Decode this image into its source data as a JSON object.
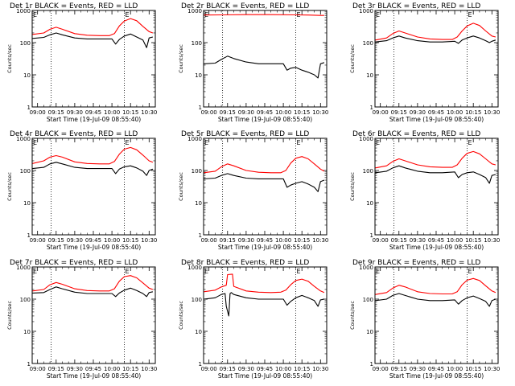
{
  "figure": {
    "x_tick_labels": [
      "09:00",
      "09:15",
      "09:30",
      "09:45",
      "10:00",
      "10:15",
      "10:30"
    ],
    "y_tick_labels": [
      "1",
      "10",
      "100",
      "1000"
    ],
    "xlabel": "Start Time (19-Jul-09 08:55:40)",
    "ylabel": "Counts/sec",
    "event_marker": "E",
    "colors": {
      "events": "#000000",
      "lld": "#ff0000",
      "frame": "#000000",
      "background": "#ffffff"
    }
  },
  "chart_data": [
    {
      "type": "line",
      "title": "Det 1r BLACK = Events, RED = LLD",
      "x_range": [
        "08:55:40",
        "10:35"
      ],
      "ylim": [
        1,
        1000
      ],
      "y_scale": "log",
      "vlines": [
        "09:11",
        "10:10"
      ],
      "series": [
        {
          "name": "Events",
          "color": "#000000",
          "x": [
            "08:56",
            "09:05",
            "09:10",
            "09:15",
            "09:20",
            "09:30",
            "09:40",
            "09:50",
            "10:00",
            "10:03",
            "10:06",
            "10:10",
            "10:15",
            "10:20",
            "10:25",
            "10:28",
            "10:30",
            "10:33"
          ],
          "values": [
            135,
            145,
            175,
            200,
            175,
            140,
            130,
            130,
            130,
            90,
            125,
            160,
            185,
            150,
            120,
            70,
            140,
            150
          ]
        },
        {
          "name": "LLD",
          "color": "#ff0000",
          "x": [
            "08:56",
            "09:05",
            "09:10",
            "09:15",
            "09:20",
            "09:30",
            "09:40",
            "09:50",
            "09:58",
            "10:02",
            "10:06",
            "10:10",
            "10:15",
            "10:20",
            "10:25",
            "10:30",
            "10:33"
          ],
          "values": [
            180,
            200,
            260,
            300,
            260,
            190,
            170,
            165,
            165,
            190,
            330,
            470,
            560,
            480,
            320,
            220,
            200
          ]
        }
      ]
    },
    {
      "type": "line",
      "title": "Det 2r BLACK = Events, RED = LLD",
      "x_range": [
        "08:55:40",
        "10:35"
      ],
      "ylim": [
        1,
        1000
      ],
      "y_scale": "log",
      "vlines": [
        "09:11",
        "10:10"
      ],
      "series": [
        {
          "name": "Events",
          "color": "#000000",
          "x": [
            "08:56",
            "09:05",
            "09:10",
            "09:15",
            "09:20",
            "09:30",
            "09:40",
            "09:50",
            "10:00",
            "10:03",
            "10:06",
            "10:10",
            "10:15",
            "10:20",
            "10:25",
            "10:28",
            "10:30",
            "10:33"
          ],
          "values": [
            22,
            23,
            30,
            38,
            32,
            25,
            22,
            22,
            22,
            14,
            16,
            17,
            14,
            12,
            10,
            8,
            22,
            24
          ]
        },
        {
          "name": "LLD",
          "color": "#ff0000",
          "x": [
            "08:56",
            "09:10",
            "09:30",
            "09:50",
            "10:10",
            "10:20",
            "10:30",
            "10:33"
          ],
          "values": [
            720,
            730,
            740,
            740,
            730,
            720,
            700,
            700
          ]
        }
      ]
    },
    {
      "type": "line",
      "title": "Det 3r BLACK = Events, RED = LLD",
      "x_range": [
        "08:55:40",
        "10:35"
      ],
      "ylim": [
        1,
        1000
      ],
      "y_scale": "log",
      "vlines": [
        "09:11",
        "10:10"
      ],
      "series": [
        {
          "name": "Events",
          "color": "#000000",
          "x": [
            "08:56",
            "09:05",
            "09:10",
            "09:15",
            "09:20",
            "09:30",
            "09:40",
            "09:50",
            "10:00",
            "10:03",
            "10:06",
            "10:10",
            "10:15",
            "10:20",
            "10:25",
            "10:28",
            "10:30",
            "10:33"
          ],
          "values": [
            105,
            115,
            140,
            160,
            140,
            115,
            105,
            105,
            110,
            95,
            120,
            140,
            160,
            140,
            115,
            100,
            110,
            120
          ]
        },
        {
          "name": "LLD",
          "color": "#ff0000",
          "x": [
            "08:56",
            "09:05",
            "09:10",
            "09:15",
            "09:20",
            "09:30",
            "09:40",
            "09:50",
            "09:58",
            "10:02",
            "10:06",
            "10:10",
            "10:15",
            "10:20",
            "10:25",
            "10:30",
            "10:33"
          ],
          "values": [
            120,
            140,
            190,
            230,
            200,
            150,
            130,
            125,
            125,
            150,
            230,
            330,
            400,
            340,
            230,
            160,
            150
          ]
        }
      ]
    },
    {
      "type": "line",
      "title": "Det 4r BLACK = Events, RED = LLD",
      "x_range": [
        "08:55:40",
        "10:35"
      ],
      "ylim": [
        1,
        1000
      ],
      "y_scale": "log",
      "vlines": [
        "09:11",
        "10:10"
      ],
      "series": [
        {
          "name": "Events",
          "color": "#000000",
          "x": [
            "08:56",
            "09:05",
            "09:10",
            "09:15",
            "09:20",
            "09:30",
            "09:40",
            "09:50",
            "10:00",
            "10:03",
            "10:06",
            "10:10",
            "10:15",
            "10:20",
            "10:25",
            "10:28",
            "10:30",
            "10:33"
          ],
          "values": [
            115,
            125,
            160,
            180,
            160,
            125,
            115,
            115,
            115,
            80,
            110,
            130,
            140,
            120,
            95,
            70,
            100,
            110
          ]
        },
        {
          "name": "LLD",
          "color": "#ff0000",
          "x": [
            "08:56",
            "09:05",
            "09:10",
            "09:15",
            "09:20",
            "09:30",
            "09:40",
            "09:50",
            "09:58",
            "10:02",
            "10:06",
            "10:10",
            "10:15",
            "10:20",
            "10:25",
            "10:30",
            "10:33"
          ],
          "values": [
            165,
            200,
            260,
            290,
            260,
            185,
            165,
            160,
            160,
            190,
            320,
            460,
            520,
            440,
            300,
            200,
            180
          ]
        }
      ]
    },
    {
      "type": "line",
      "title": "Det 5r BLACK = Events, RED = LLD",
      "x_range": [
        "08:55:40",
        "10:35"
      ],
      "ylim": [
        1,
        1000
      ],
      "y_scale": "log",
      "vlines": [
        "09:11",
        "10:10"
      ],
      "series": [
        {
          "name": "Events",
          "color": "#000000",
          "x": [
            "08:56",
            "09:05",
            "09:10",
            "09:15",
            "09:20",
            "09:30",
            "09:40",
            "09:50",
            "10:00",
            "10:03",
            "10:06",
            "10:10",
            "10:15",
            "10:20",
            "10:25",
            "10:28",
            "10:30",
            "10:33"
          ],
          "values": [
            55,
            58,
            70,
            80,
            70,
            58,
            55,
            55,
            55,
            30,
            35,
            40,
            45,
            38,
            30,
            22,
            45,
            50
          ]
        },
        {
          "name": "LLD",
          "color": "#ff0000",
          "x": [
            "08:56",
            "09:05",
            "09:10",
            "09:15",
            "09:20",
            "09:30",
            "09:40",
            "09:50",
            "09:58",
            "10:02",
            "10:06",
            "10:10",
            "10:15",
            "10:20",
            "10:25",
            "10:30",
            "10:33"
          ],
          "values": [
            85,
            95,
            130,
            160,
            140,
            100,
            88,
            85,
            85,
            100,
            170,
            240,
            270,
            230,
            160,
            110,
            95
          ]
        }
      ]
    },
    {
      "type": "line",
      "title": "Det 6r BLACK = Events, RED = LLD",
      "x_range": [
        "08:55:40",
        "10:35"
      ],
      "ylim": [
        1,
        1000
      ],
      "y_scale": "log",
      "vlines": [
        "09:11",
        "10:10"
      ],
      "series": [
        {
          "name": "Events",
          "color": "#000000",
          "x": [
            "08:56",
            "09:05",
            "09:10",
            "09:15",
            "09:20",
            "09:30",
            "09:40",
            "09:50",
            "10:00",
            "10:03",
            "10:06",
            "10:10",
            "10:15",
            "10:20",
            "10:25",
            "10:28",
            "10:30",
            "10:33"
          ],
          "values": [
            85,
            95,
            120,
            140,
            120,
            95,
            85,
            85,
            90,
            60,
            75,
            85,
            90,
            75,
            60,
            40,
            70,
            75
          ]
        },
        {
          "name": "LLD",
          "color": "#ff0000",
          "x": [
            "08:56",
            "09:05",
            "09:10",
            "09:15",
            "09:20",
            "09:30",
            "09:40",
            "09:50",
            "09:58",
            "10:02",
            "10:06",
            "10:10",
            "10:15",
            "10:20",
            "10:25",
            "10:30",
            "10:33"
          ],
          "values": [
            120,
            140,
            190,
            230,
            200,
            150,
            130,
            125,
            125,
            150,
            240,
            340,
            390,
            330,
            230,
            160,
            150
          ]
        }
      ]
    },
    {
      "type": "line",
      "title": "Det 7r BLACK = Events, RED = LLD",
      "x_range": [
        "08:55:40",
        "10:35"
      ],
      "ylim": [
        1,
        1000
      ],
      "y_scale": "log",
      "vlines": [
        "09:11",
        "10:10"
      ],
      "series": [
        {
          "name": "Events",
          "color": "#000000",
          "x": [
            "08:56",
            "09:05",
            "09:10",
            "09:15",
            "09:20",
            "09:30",
            "09:40",
            "09:50",
            "10:00",
            "10:03",
            "10:06",
            "10:10",
            "10:15",
            "10:20",
            "10:25",
            "10:28",
            "10:30",
            "10:33"
          ],
          "values": [
            155,
            160,
            200,
            240,
            210,
            165,
            150,
            150,
            150,
            120,
            155,
            190,
            220,
            185,
            150,
            120,
            160,
            170
          ]
        },
        {
          "name": "LLD",
          "color": "#ff0000",
          "x": [
            "08:56",
            "09:05",
            "09:10",
            "09:15",
            "09:20",
            "09:30",
            "09:40",
            "09:50",
            "09:58",
            "10:02",
            "10:06",
            "10:10",
            "10:15",
            "10:20",
            "10:25",
            "10:30",
            "10:33"
          ],
          "values": [
            180,
            200,
            280,
            330,
            290,
            210,
            185,
            180,
            180,
            210,
            360,
            500,
            540,
            460,
            320,
            220,
            200
          ]
        }
      ]
    },
    {
      "type": "line",
      "title": "Det 8r BLACK = Events, RED = LLD",
      "x_range": [
        "08:55:40",
        "10:35"
      ],
      "ylim": [
        1,
        1000
      ],
      "y_scale": "log",
      "vlines": [
        "09:11",
        "10:10"
      ],
      "series": [
        {
          "name": "Events",
          "color": "#000000",
          "x": [
            "08:56",
            "09:05",
            "09:10",
            "09:13",
            "09:14",
            "09:16",
            "09:17",
            "09:18",
            "09:20",
            "09:30",
            "09:40",
            "09:50",
            "10:00",
            "10:03",
            "10:06",
            "10:10",
            "10:15",
            "10:20",
            "10:25",
            "10:28",
            "10:30",
            "10:33"
          ],
          "values": [
            100,
            110,
            140,
            150,
            60,
            30,
            150,
            160,
            140,
            110,
            100,
            100,
            100,
            65,
            85,
            110,
            130,
            110,
            90,
            60,
            95,
            100
          ]
        },
        {
          "name": "LLD",
          "color": "#ff0000",
          "x": [
            "08:56",
            "09:05",
            "09:10",
            "09:14",
            "09:15",
            "09:19",
            "09:20",
            "09:30",
            "09:40",
            "09:50",
            "09:58",
            "10:02",
            "10:06",
            "10:10",
            "10:15",
            "10:20",
            "10:25",
            "10:30",
            "10:33"
          ],
          "values": [
            170,
            190,
            240,
            270,
            580,
            600,
            250,
            180,
            165,
            160,
            165,
            190,
            280,
            380,
            420,
            360,
            250,
            180,
            160
          ]
        }
      ]
    },
    {
      "type": "line",
      "title": "Det 9r BLACK = Events, RED = LLD",
      "x_range": [
        "08:55:40",
        "10:35"
      ],
      "ylim": [
        1,
        1000
      ],
      "y_scale": "log",
      "vlines": [
        "09:11",
        "10:10"
      ],
      "series": [
        {
          "name": "Events",
          "color": "#000000",
          "x": [
            "08:56",
            "09:05",
            "09:10",
            "09:15",
            "09:20",
            "09:30",
            "09:40",
            "09:50",
            "10:00",
            "10:03",
            "10:06",
            "10:10",
            "10:15",
            "10:20",
            "10:25",
            "10:28",
            "10:30",
            "10:33"
          ],
          "values": [
            90,
            100,
            130,
            150,
            130,
            100,
            90,
            90,
            95,
            70,
            90,
            110,
            125,
            105,
            85,
            60,
            90,
            100
          ]
        },
        {
          "name": "LLD",
          "color": "#ff0000",
          "x": [
            "08:56",
            "09:05",
            "09:10",
            "09:15",
            "09:20",
            "09:30",
            "09:40",
            "09:50",
            "09:58",
            "10:02",
            "10:06",
            "10:10",
            "10:15",
            "10:20",
            "10:25",
            "10:30",
            "10:33"
          ],
          "values": [
            140,
            160,
            220,
            270,
            240,
            170,
            150,
            145,
            145,
            170,
            280,
            390,
            440,
            380,
            260,
            180,
            160
          ]
        }
      ]
    }
  ]
}
